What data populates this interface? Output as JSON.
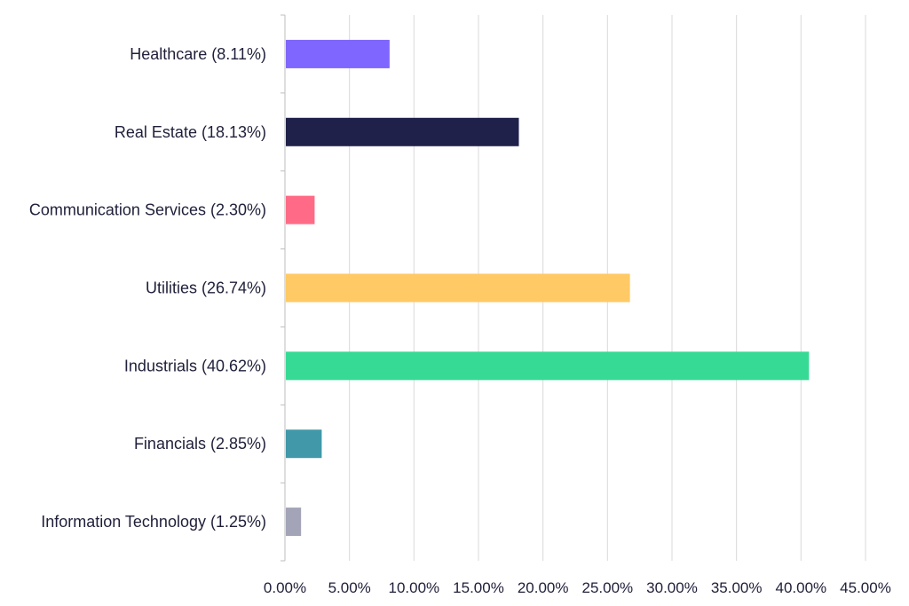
{
  "chart_data": {
    "type": "bar",
    "orientation": "horizontal",
    "categories": [
      "Healthcare (8.11%)",
      "Real Estate (18.13%)",
      "Communication Services (2.30%)",
      "Utilities (26.74%)",
      "Industrials (40.62%)",
      "Financials (2.85%)",
      "Information Technology (1.25%)"
    ],
    "values": [
      8.11,
      18.13,
      2.3,
      26.74,
      40.62,
      2.85,
      1.25
    ],
    "colors": [
      "#7f66ff",
      "#20214a",
      "#ff6b86",
      "#ffc965",
      "#37da95",
      "#4098a9",
      "#a3a4b8"
    ],
    "xlim": [
      0,
      45
    ],
    "x_ticks": [
      "0.00%",
      "5.00%",
      "10.00%",
      "15.00%",
      "20.00%",
      "25.00%",
      "30.00%",
      "35.00%",
      "40.00%",
      "45.00%"
    ],
    "grid": "vertical",
    "legend": "none"
  }
}
